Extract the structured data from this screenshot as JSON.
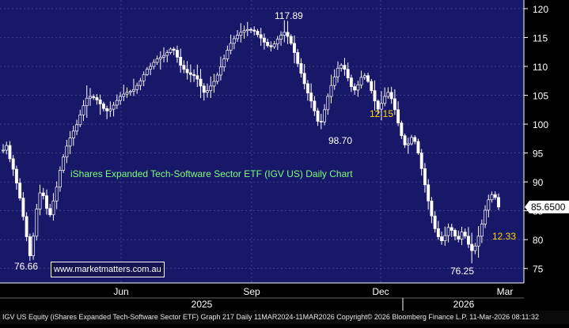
{
  "footer": {
    "text": "IGV US Equity (iShares Expanded Tech-Software Sector ETF) Graph 217 Daily 11MAR2024-11MAR2026 Copyright© 2026 Bloomberg Finance L.P.  11-Mar-2026 08:11:32"
  },
  "watermark": {
    "text": "www.marketmatters.com.au"
  },
  "colors": {
    "plot_bg": "#181868",
    "axis_bg": "#000000",
    "candle": "#ffffff",
    "grid": "#5a5a9a",
    "title_text": "#7cff7c",
    "highlight_text": "#ffd700",
    "price_tag_bg": "#ffffff",
    "price_tag_text": "#000000"
  },
  "chart_data": {
    "type": "line",
    "title": "iShares Expanded Tech-Software Sector ETF (IGV US) Daily Chart",
    "yaxis_ticks": [
      75,
      80,
      85,
      90,
      95,
      100,
      105,
      110,
      115,
      120
    ],
    "ylim": [
      72.5,
      121.5
    ],
    "x_month_labels": [
      "Jun",
      "Sep",
      "Dec",
      "Mar"
    ],
    "x_year_labels": [
      "2025",
      "2026"
    ],
    "last_price": "85.6500",
    "annotations": [
      {
        "text": "117.89",
        "value": 117.89,
        "kind": "high"
      },
      {
        "text": "98.70",
        "value": 98.7,
        "kind": "low"
      },
      {
        "text": "12.15",
        "value": 12.15,
        "kind": "highlight"
      },
      {
        "text": "76.66",
        "value": 76.66,
        "kind": "low"
      },
      {
        "text": "76.25",
        "value": 76.25,
        "kind": "low"
      },
      {
        "text": "12.33",
        "value": 12.33,
        "kind": "highlight"
      }
    ],
    "series": [
      {
        "values": [
          95.5,
          96.3,
          94.0,
          92.2,
          89.8,
          87.2,
          84.0,
          80.5,
          77.2,
          80.6,
          85.3,
          88.1,
          87.6,
          85.4,
          84.3,
          86.7,
          89.1,
          92.0,
          94.3,
          96.2,
          97.6,
          98.8,
          99.9,
          101.6,
          103.2,
          104.5,
          104.8,
          104.6,
          104.2,
          103.5,
          102.7,
          102.3,
          102.6,
          103.3,
          104.1,
          104.8,
          105.2,
          105.5,
          105.7,
          106.0,
          106.7,
          107.5,
          108.6,
          109.5,
          110.0,
          110.7,
          111.3,
          111.6,
          111.9,
          112.4,
          113.0,
          112.8,
          111.6,
          110.2,
          109.5,
          108.9,
          108.6,
          108.4,
          107.8,
          106.6,
          105.5,
          105.8,
          106.6,
          107.4,
          108.5,
          109.9,
          111.3,
          112.8,
          114.0,
          114.8,
          115.4,
          115.9,
          116.2,
          116.4,
          116.3,
          116.1,
          115.5,
          114.9,
          114.2,
          113.6,
          113.4,
          113.9,
          114.7,
          115.4,
          115.9,
          115.2,
          114.0,
          112.4,
          110.5,
          108.8,
          107.0,
          105.4,
          104.0,
          102.3,
          100.5,
          100.4,
          102.5,
          104.8,
          106.7,
          108.2,
          109.7,
          110.2,
          109.5,
          108.0,
          106.5,
          105.9,
          106.8,
          108.1,
          108.4,
          107.4,
          105.8,
          104.0,
          102.6,
          103.6,
          104.8,
          105.5,
          104.4,
          102.5,
          100.2,
          98.0,
          96.4,
          96.6,
          97.7,
          97.0,
          95.0,
          92.3,
          89.5,
          86.7,
          84.1,
          81.9,
          80.5,
          79.8,
          80.7,
          82.1,
          81.6,
          80.6,
          80.1,
          81.3,
          80.6,
          79.2,
          78.1,
          78.9,
          80.6,
          82.7,
          85.1,
          86.9,
          87.8,
          87.3,
          85.65
        ]
      }
    ]
  }
}
